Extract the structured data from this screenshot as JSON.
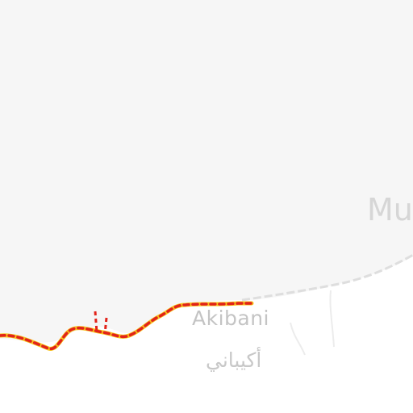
{
  "map": {
    "background_color": "#f6f6f6",
    "land_color": "#ffffff",
    "road_color": "#dcdcdc",
    "boundary_colors": {
      "dash": "#e2231a",
      "casing": "#f7c31c"
    },
    "labels": {
      "town_latin": "Akibani",
      "town_arabic": "أكيباني",
      "region_partial": "Mu"
    }
  }
}
